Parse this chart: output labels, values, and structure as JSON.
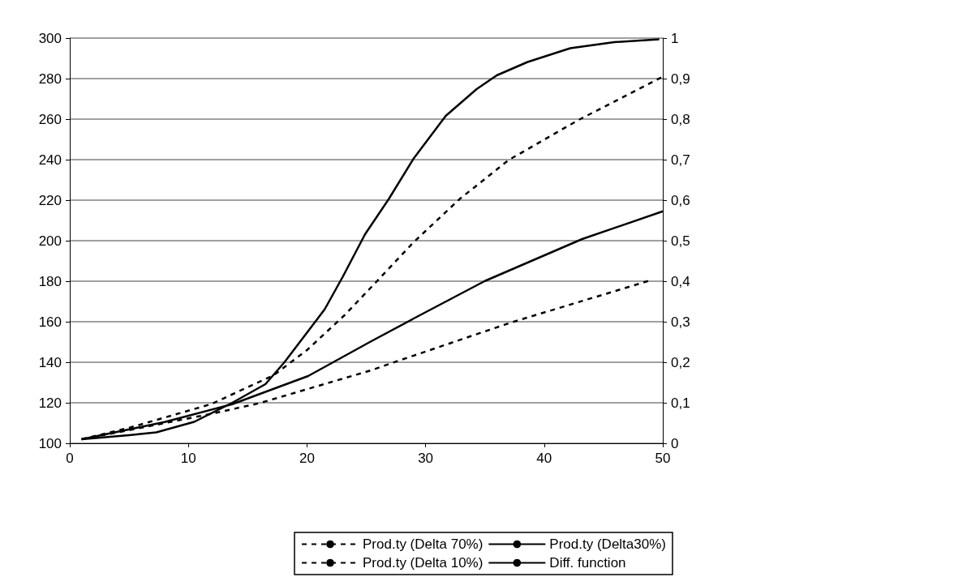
{
  "chart_data": {
    "type": "line",
    "xlim": [
      0,
      50
    ],
    "xticks": [
      0,
      10,
      20,
      30,
      40,
      50
    ],
    "ylim": [
      100,
      300
    ],
    "yticks": [
      100,
      120,
      140,
      160,
      180,
      200,
      220,
      240,
      260,
      280,
      300
    ],
    "y2lim": [
      0,
      1
    ],
    "y2ticks": [
      0,
      {
        "value": 0.1,
        "label": "0,1"
      },
      {
        "value": 0.2,
        "label": "0,2"
      },
      {
        "value": 0.3,
        "label": "0,3"
      },
      {
        "value": 0.4,
        "label": "0,4"
      },
      {
        "value": 0.5,
        "label": "0,5"
      },
      {
        "value": 0.6,
        "label": "0,6"
      },
      {
        "value": 0.7,
        "label": "0,7"
      },
      {
        "value": 0.8,
        "label": "0,8"
      },
      {
        "value": 0.9,
        "label": "0,9"
      },
      1
    ],
    "grid": "y",
    "legend": "bottom",
    "marker": "none",
    "series": [
      {
        "name": "Prod.ty (Delta 70%)",
        "color": "#000000",
        "line_style": "dashed",
        "x": [
          1,
          5.1,
          11.9,
          17.2,
          20,
          23.2,
          25.8,
          29,
          32.9,
          37,
          42.9,
          50
        ],
        "values": [
          102,
          107.8,
          119.3,
          133.6,
          146,
          163.4,
          179.4,
          199.3,
          220.7,
          239.8,
          259.6,
          281
        ]
      },
      {
        "name": "Prod.ty (Delta30%)",
        "color": "#000000",
        "line_style": "solid",
        "x": [
          1,
          8,
          13.7,
          20.1,
          25.4,
          29,
          35,
          43.2,
          50
        ],
        "values": [
          102,
          110.5,
          119.3,
          133.2,
          150.3,
          161.6,
          180.1,
          200.8,
          214.5
        ]
      },
      {
        "name": "Prod.ty (Delta 10%)",
        "color": "#000000",
        "line_style": "dashed",
        "x": [
          1,
          5.1,
          11.9,
          16,
          25.4,
          27.2,
          37.2,
          49
        ],
        "values": [
          102,
          106.6,
          114.5,
          119.8,
          136,
          139.7,
          159.6,
          180.5
        ]
      },
      {
        "name": "Diff. function",
        "color": "#000000",
        "line_style": "solid",
        "axis": "y2",
        "x": [
          1,
          5,
          7.3,
          10.5,
          13.7,
          16.5,
          18.1,
          20.7,
          21.5,
          23,
          24.9,
          26.9,
          29,
          31.7,
          34.3,
          36,
          38.6,
          42.2,
          45.9,
          49.7
        ],
        "values": [
          0.01,
          0.02,
          0.027,
          0.053,
          0.1,
          0.146,
          0.2,
          0.3,
          0.331,
          0.41,
          0.516,
          0.603,
          0.703,
          0.808,
          0.874,
          0.908,
          0.941,
          0.975,
          0.99,
          0.997
        ]
      }
    ]
  }
}
